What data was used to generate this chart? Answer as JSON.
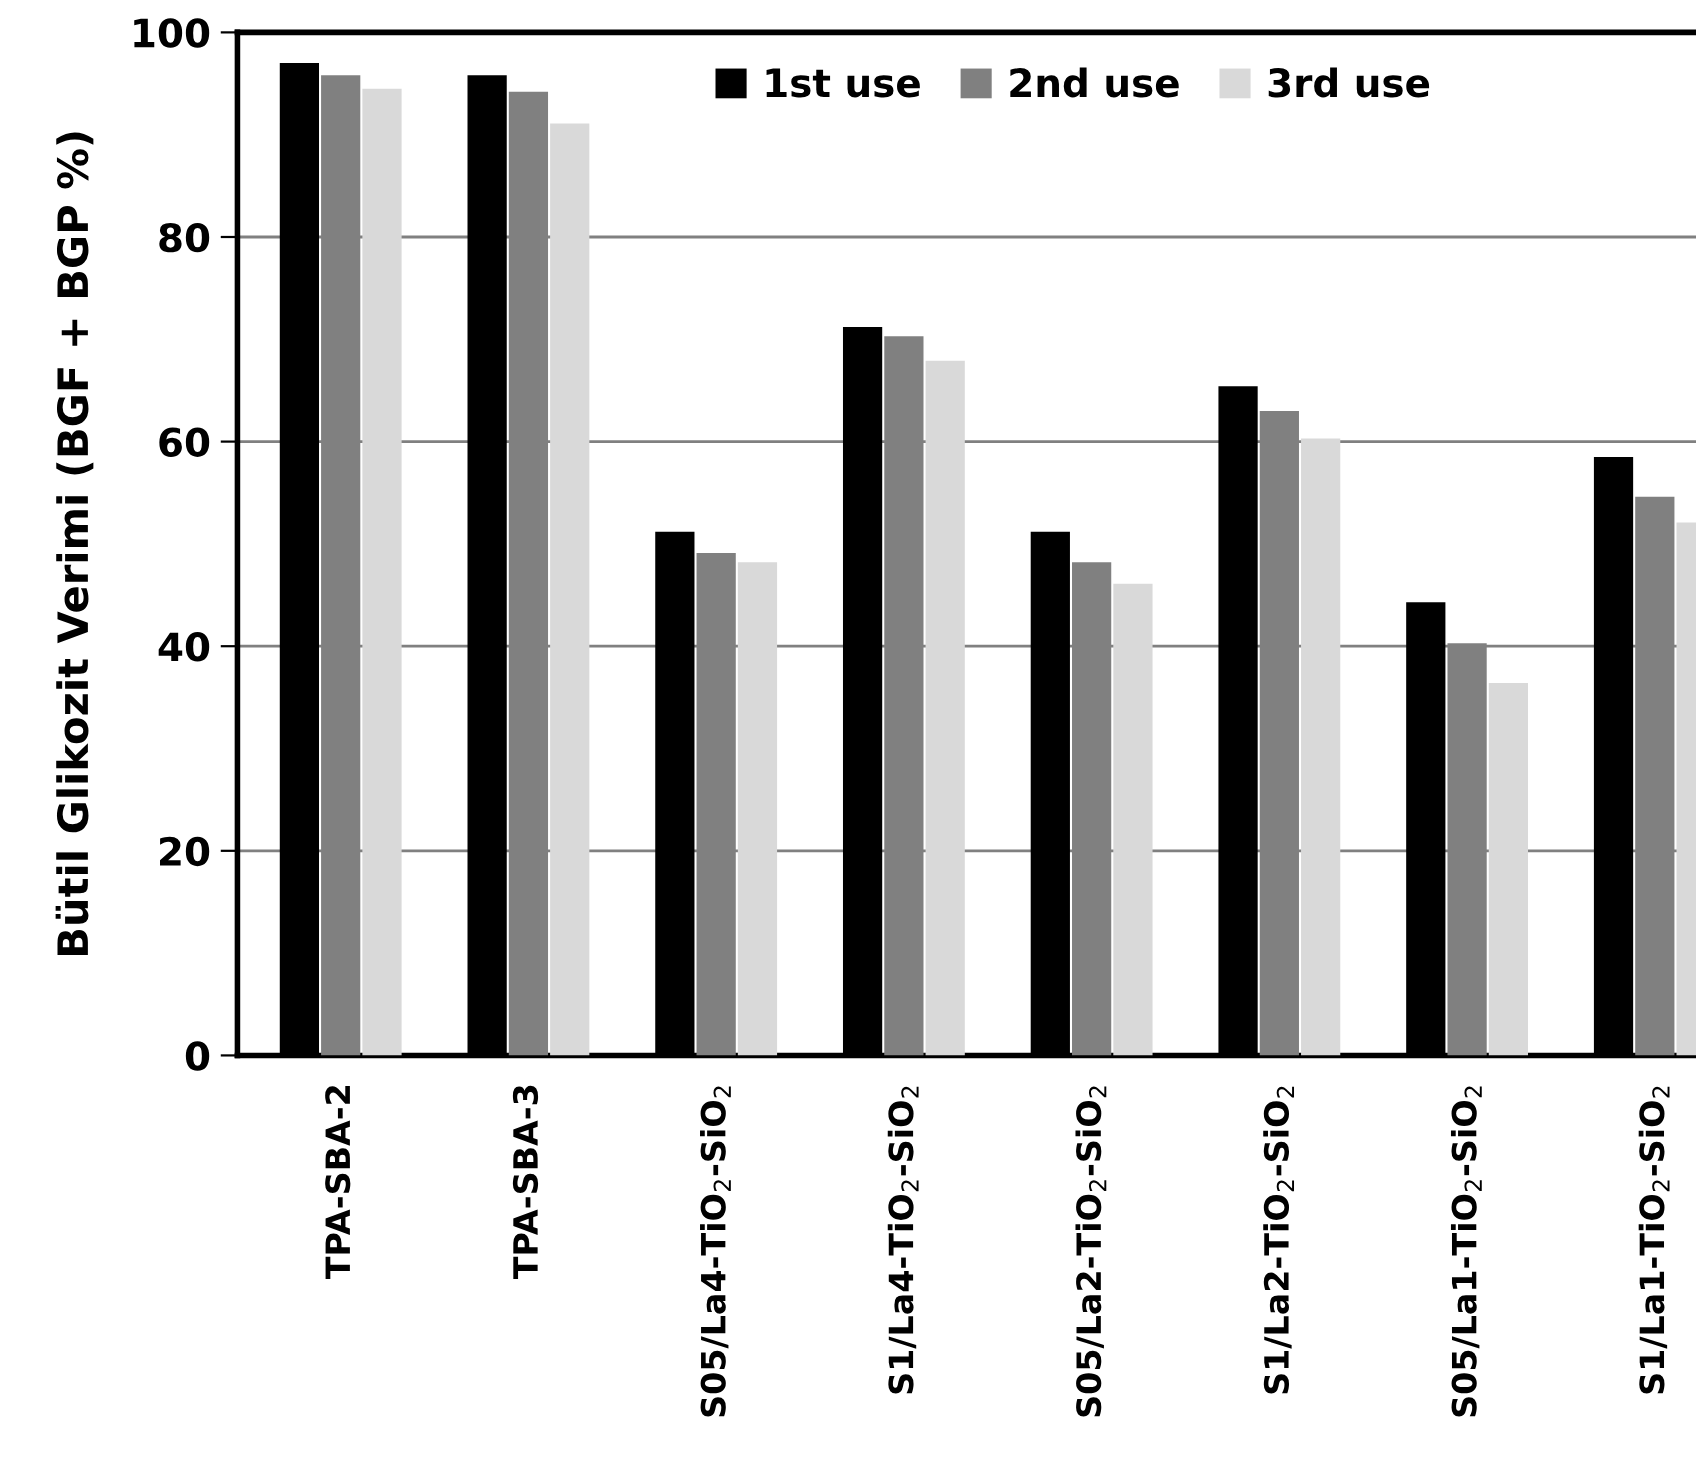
{
  "chart_data": {
    "type": "bar",
    "ylabel": "Bütil Glikozit Verimi (BGF + BGP %)",
    "categories": [
      "TPA-SBA-2",
      "TPA-SBA-3",
      "S05/La4-TiO$_{2}$-SiO$_{2}$",
      "S1/La4-TiO$_{2}$-SiO$_{2}$",
      "S05/La2-TiO$_{2}$-SiO$_{2}$",
      "S1/La2-TiO$_{2}$-SiO$_{2}$",
      "S05/La1-TiO$_{2}$-SiO$_{2}$",
      "S1/La1-TiO$_{2}$-SiO$_{2}$"
    ],
    "series": [
      {
        "name": "1st use",
        "color": "#000000",
        "values": [
          97.0,
          95.8,
          51.2,
          71.2,
          51.2,
          65.4,
          44.3,
          58.5
        ]
      },
      {
        "name": "2nd use",
        "color": "#808080",
        "values": [
          95.8,
          94.2,
          49.1,
          70.3,
          48.2,
          63.0,
          40.3,
          54.6
        ]
      },
      {
        "name": "3rd use",
        "color": "#d9d9d9",
        "values": [
          94.5,
          91.1,
          48.2,
          67.9,
          46.1,
          60.3,
          36.4,
          52.1
        ]
      }
    ],
    "ylim": [
      0,
      100
    ],
    "yticks": [
      0,
      20,
      40,
      60,
      80,
      100
    ],
    "grid": "y",
    "legend": "top"
  }
}
